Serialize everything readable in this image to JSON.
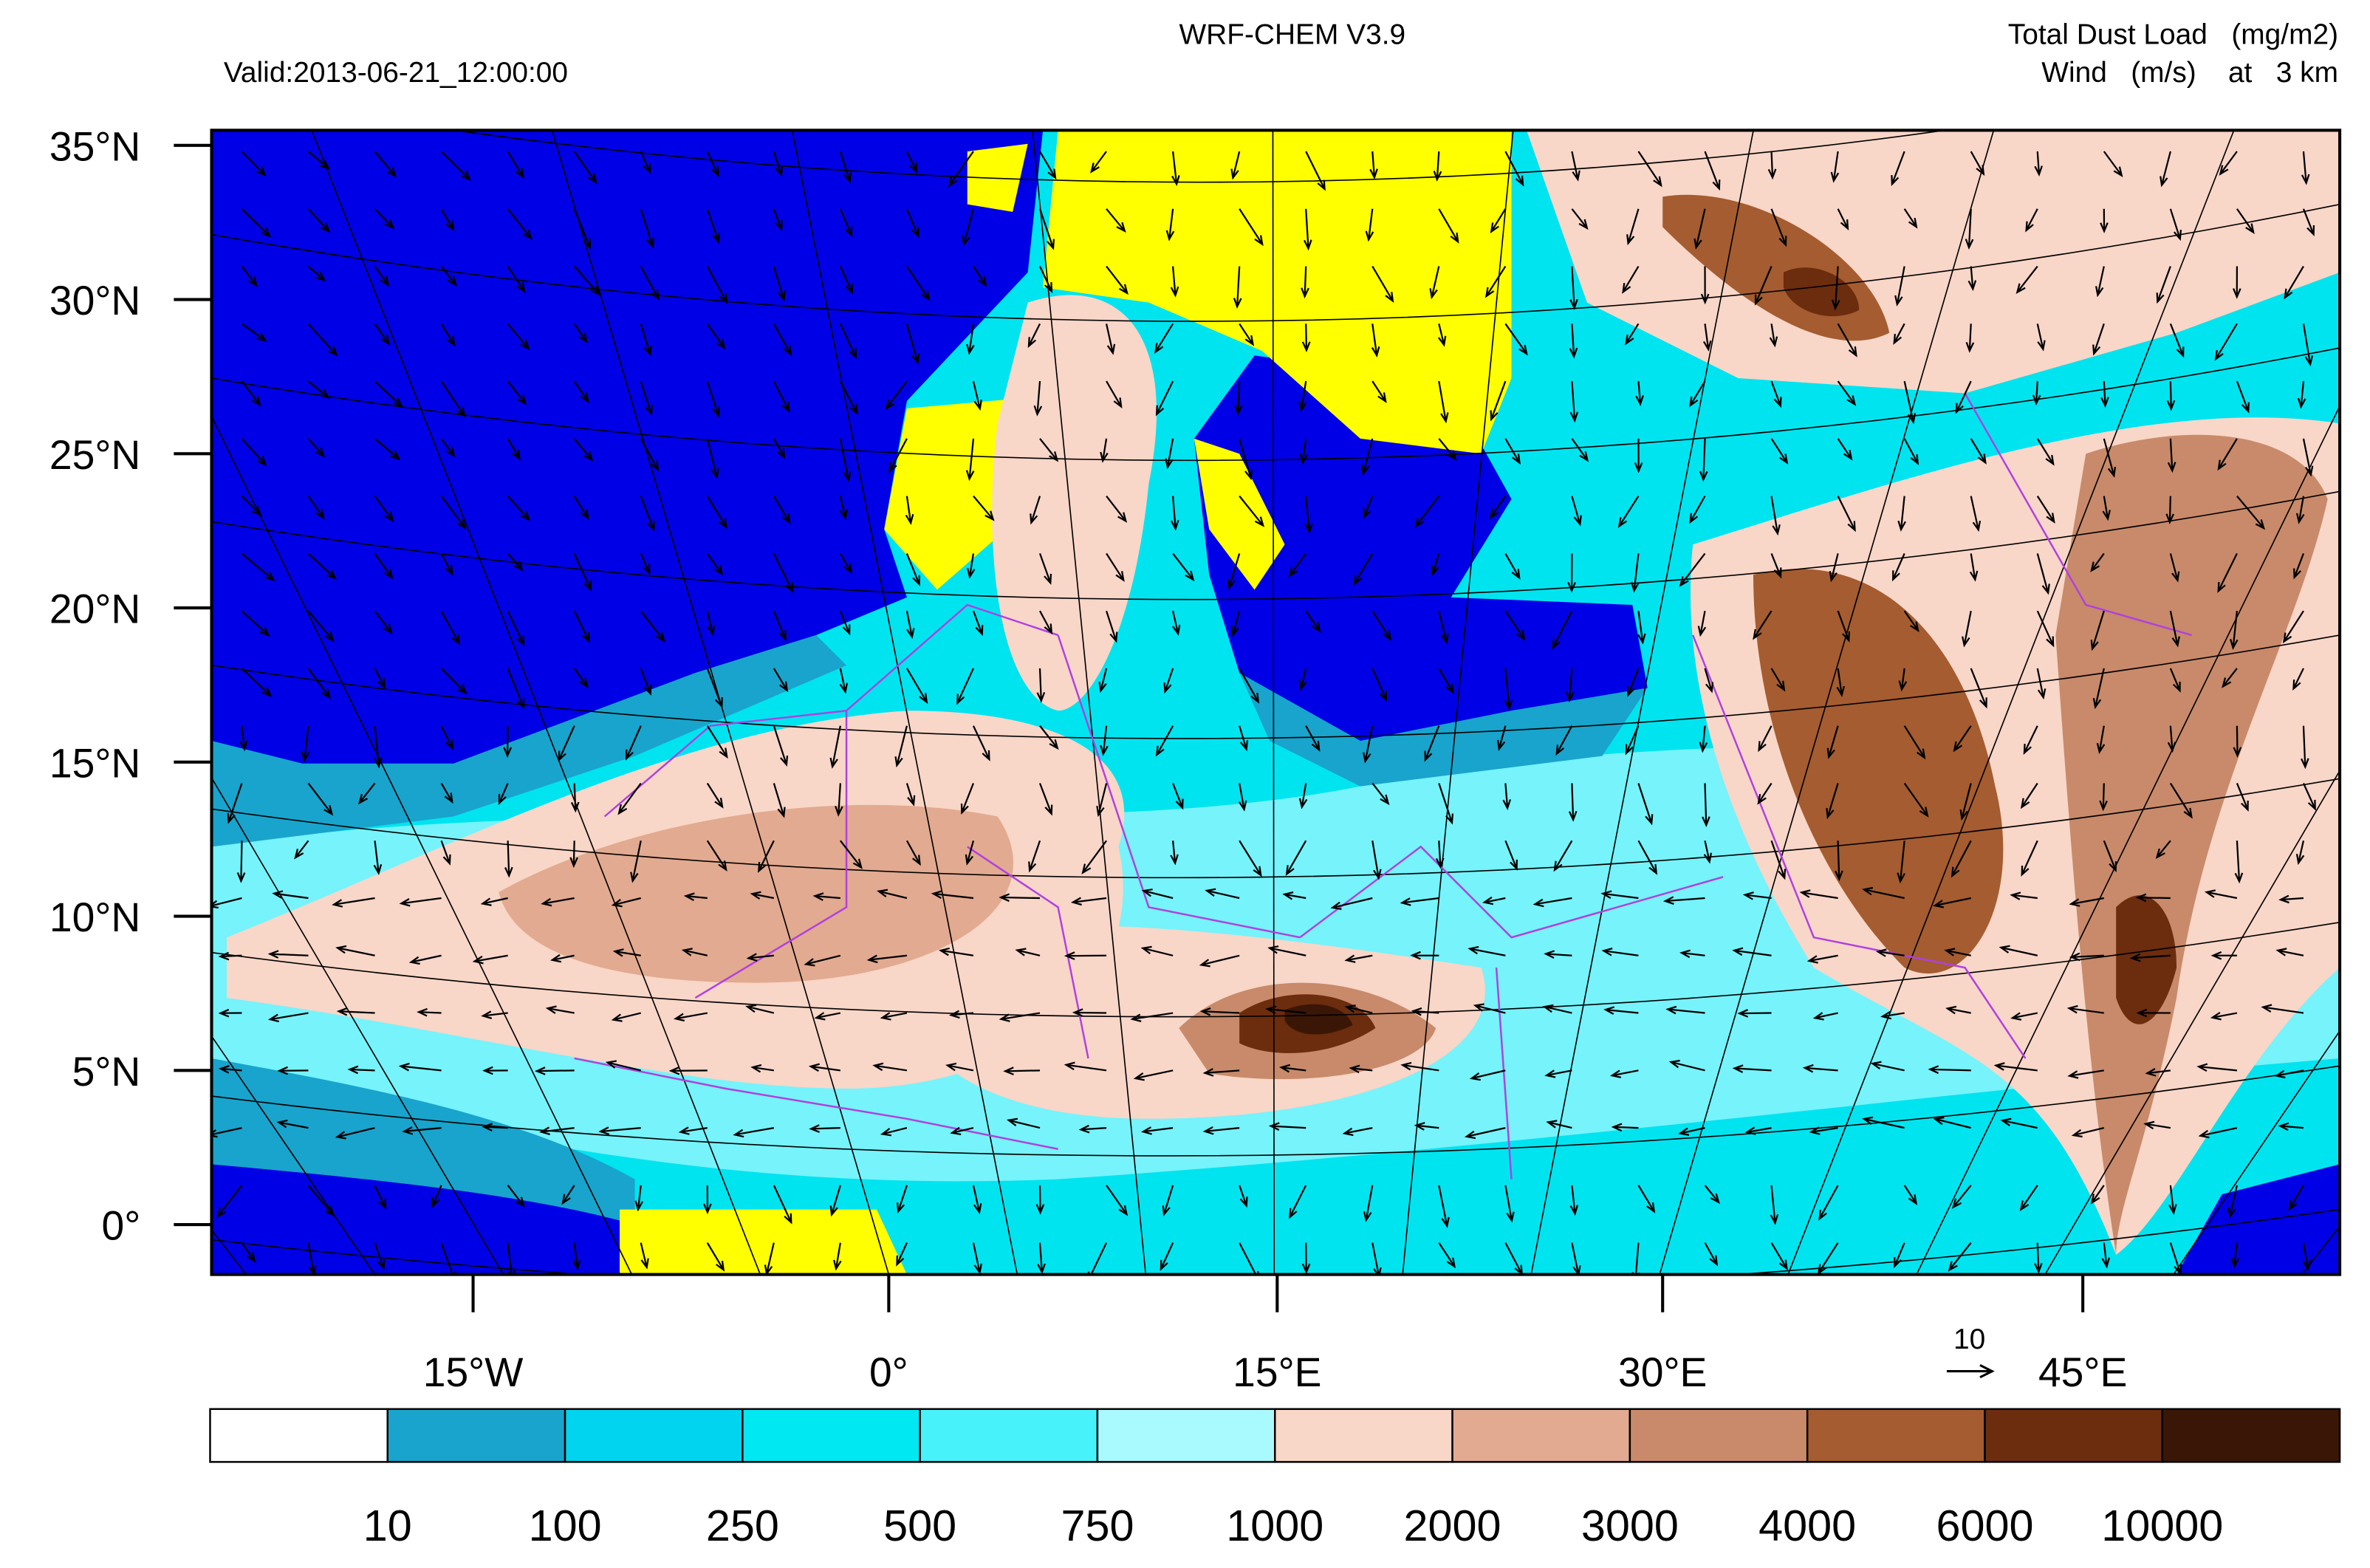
{
  "header": {
    "title": "WRF-CHEM V3.9",
    "valid": "Valid:2013-06-21_12:00:00",
    "variable": "Total Dust Load   (mg/m2)",
    "wind": "Wind   (m/s)    at   3 km"
  },
  "map": {
    "lat_labels": [
      "35°N",
      "30°N",
      "25°N",
      "20°N",
      "15°N",
      "10°N",
      "5°N",
      "0°"
    ],
    "lon_labels": [
      "15°W",
      "0°",
      "15°E",
      "30°E",
      "45°E"
    ]
  },
  "wind_reference": {
    "value": 10
  },
  "colorbar": {
    "levels": [
      10,
      100,
      250,
      500,
      750,
      1000,
      2000,
      3000,
      4000,
      6000,
      10000
    ],
    "colors": [
      "#ffffff",
      "#18a4cc",
      "#00d4ee",
      "#00e8f2",
      "#48f2fa",
      "#a8faff",
      "#f8d6c8",
      "#e2aa90",
      "#c88a6a",
      "#a45c30",
      "#6c2c0e",
      "#3a1606"
    ]
  }
}
